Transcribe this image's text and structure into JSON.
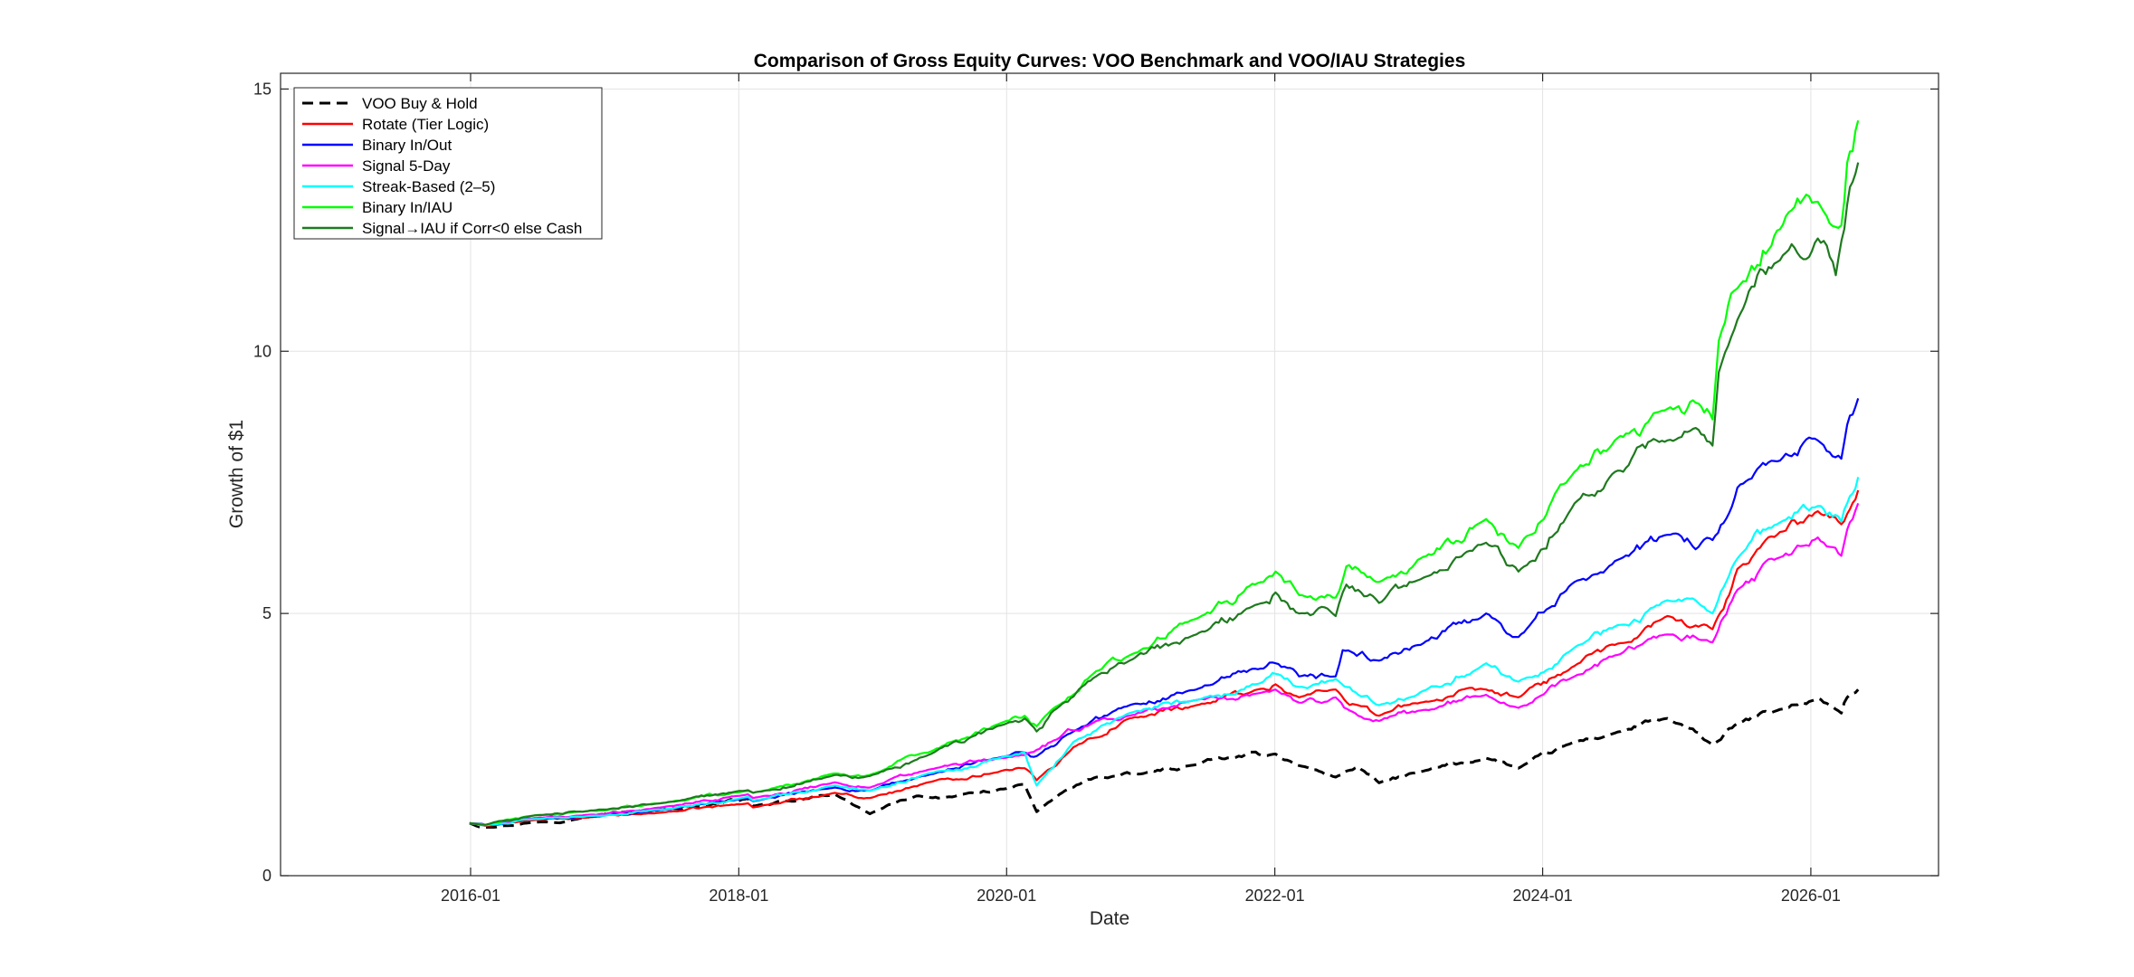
{
  "chart_data": {
    "type": "line",
    "title": "Comparison of Gross Equity Curves: VOO Benchmark and VOO/IAU Strategies",
    "xlabel": "Date",
    "ylabel": "Growth of $1",
    "xlim": [
      "2014-08-01",
      "2026-12-15"
    ],
    "ylim": [
      0,
      15.3
    ],
    "xticks": [
      "2016-01",
      "2018-01",
      "2020-01",
      "2022-01",
      "2024-01",
      "2026-01"
    ],
    "yticks": [
      0,
      5,
      10,
      15
    ],
    "grid": true,
    "legend_position": "top-left",
    "colors": {
      "voo": "#000000",
      "rotate": "#ff0000",
      "binary_inout": "#0000ff",
      "signal5": "#ff00ff",
      "streak": "#00ffff",
      "binary_iau": "#00ff00",
      "signal_iau": "#1e7a1e"
    },
    "series": [
      {
        "name": "VOO Buy & Hold",
        "key": "voo",
        "dashed": true,
        "x": [
          "2015-12-29",
          "2016-02-10",
          "2016-06-24",
          "2016-11-01",
          "2017-03-01",
          "2017-06-01",
          "2017-10-01",
          "2018-01-26",
          "2018-02-09",
          "2018-06-01",
          "2018-09-20",
          "2018-12-24",
          "2019-04-30",
          "2019-08-05",
          "2019-12-31",
          "2020-02-19",
          "2020-03-23",
          "2020-06-08",
          "2020-09-02",
          "2021-01-01",
          "2021-06-01",
          "2021-09-02",
          "2022-01-03",
          "2022-03-08",
          "2022-06-16",
          "2022-08-16",
          "2022-10-12",
          "2023-02-02",
          "2023-07-31",
          "2023-10-27",
          "2024-03-28",
          "2024-07-16",
          "2024-12-06",
          "2025-04-08",
          "2025-06-15",
          "2025-10-01",
          "2026-01-20",
          "2026-03-25",
          "2026-04-10",
          "2026-05-10"
        ],
        "values": [
          1.0,
          0.92,
          1.02,
          1.1,
          1.22,
          1.26,
          1.34,
          1.47,
          1.33,
          1.42,
          1.55,
          1.18,
          1.52,
          1.5,
          1.66,
          1.74,
          1.22,
          1.62,
          1.88,
          1.94,
          2.12,
          2.25,
          2.32,
          2.1,
          1.88,
          2.08,
          1.77,
          1.98,
          2.24,
          2.05,
          2.55,
          2.72,
          3.0,
          2.5,
          2.9,
          3.15,
          3.38,
          3.1,
          3.4,
          3.55
        ]
      },
      {
        "name": "Rotate (Tier Logic)",
        "key": "rotate",
        "x": [
          "2015-12-29",
          "2016-02-10",
          "2016-06-24",
          "2016-11-01",
          "2017-06-01",
          "2018-01-26",
          "2018-02-09",
          "2018-09-20",
          "2018-12-24",
          "2019-06-01",
          "2019-12-31",
          "2020-02-19",
          "2020-03-23",
          "2020-07-01",
          "2020-12-01",
          "2021-06-01",
          "2021-11-15",
          "2022-01-03",
          "2022-03-08",
          "2022-06-16",
          "2022-08-16",
          "2022-10-12",
          "2023-02-02",
          "2023-07-31",
          "2023-10-27",
          "2024-03-28",
          "2024-07-16",
          "2024-12-06",
          "2025-04-08",
          "2025-06-15",
          "2025-10-01",
          "2026-01-20",
          "2026-03-25",
          "2026-04-10",
          "2026-05-10"
        ],
        "values": [
          1.0,
          0.95,
          1.06,
          1.1,
          1.2,
          1.38,
          1.3,
          1.58,
          1.48,
          1.78,
          2.02,
          2.05,
          1.82,
          2.45,
          3.0,
          3.25,
          3.55,
          3.65,
          3.4,
          3.55,
          3.25,
          3.05,
          3.3,
          3.55,
          3.4,
          4.0,
          4.4,
          4.95,
          4.7,
          5.85,
          6.5,
          6.95,
          6.7,
          6.9,
          7.35
        ]
      },
      {
        "name": "Binary In/Out",
        "key": "binary_inout",
        "x": [
          "2015-12-29",
          "2016-02-10",
          "2016-06-24",
          "2016-11-01",
          "2017-06-01",
          "2018-01-26",
          "2018-02-09",
          "2018-09-20",
          "2018-12-24",
          "2019-06-01",
          "2019-12-31",
          "2020-02-19",
          "2020-03-23",
          "2020-07-01",
          "2020-12-01",
          "2021-06-01",
          "2021-12-01",
          "2022-01-03",
          "2022-03-08",
          "2022-06-16",
          "2022-07-05",
          "2022-10-12",
          "2023-02-02",
          "2023-07-31",
          "2023-10-27",
          "2024-03-28",
          "2024-07-16",
          "2024-12-06",
          "2025-04-08",
          "2025-06-15",
          "2025-10-01",
          "2026-01-20",
          "2026-03-25",
          "2026-04-10",
          "2026-05-10"
        ],
        "values": [
          1.0,
          0.97,
          1.08,
          1.12,
          1.25,
          1.48,
          1.42,
          1.68,
          1.62,
          1.92,
          2.28,
          2.35,
          2.28,
          2.75,
          3.25,
          3.55,
          3.95,
          4.05,
          3.8,
          3.8,
          4.3,
          4.1,
          4.4,
          5.0,
          4.55,
          5.6,
          6.0,
          6.5,
          6.4,
          7.4,
          7.9,
          8.3,
          7.95,
          8.6,
          9.1
        ]
      },
      {
        "name": "Signal 5-Day",
        "key": "signal5",
        "x": [
          "2015-12-29",
          "2016-02-10",
          "2016-06-24",
          "2016-11-01",
          "2017-06-01",
          "2018-01-26",
          "2018-02-09",
          "2018-09-20",
          "2018-12-24",
          "2019-06-01",
          "2019-12-31",
          "2020-02-19",
          "2020-03-23",
          "2020-05-01",
          "2020-09-01",
          "2020-12-01",
          "2021-06-01",
          "2021-12-01",
          "2022-01-03",
          "2022-03-08",
          "2022-06-16",
          "2022-08-16",
          "2022-10-12",
          "2023-02-02",
          "2023-07-31",
          "2023-10-27",
          "2024-03-28",
          "2024-07-16",
          "2024-12-06",
          "2025-04-08",
          "2025-06-15",
          "2025-10-01",
          "2026-01-20",
          "2026-03-25",
          "2026-04-10",
          "2026-05-10"
        ],
        "values": [
          1.0,
          0.97,
          1.1,
          1.15,
          1.3,
          1.55,
          1.48,
          1.78,
          1.68,
          2.02,
          2.25,
          2.3,
          2.4,
          2.55,
          2.95,
          3.05,
          3.35,
          3.5,
          3.55,
          3.3,
          3.4,
          3.05,
          2.95,
          3.15,
          3.45,
          3.2,
          3.8,
          4.2,
          4.6,
          4.45,
          5.45,
          6.05,
          6.45,
          6.1,
          6.6,
          7.1
        ]
      },
      {
        "name": "Streak-Based (2–5)",
        "key": "streak",
        "x": [
          "2015-12-29",
          "2016-02-10",
          "2016-06-24",
          "2016-11-01",
          "2017-06-01",
          "2018-01-26",
          "2018-02-09",
          "2018-09-20",
          "2018-12-24",
          "2019-06-01",
          "2019-12-31",
          "2020-02-19",
          "2020-03-23",
          "2020-07-01",
          "2020-12-01",
          "2021-06-01",
          "2021-12-01",
          "2022-01-03",
          "2022-03-08",
          "2022-06-16",
          "2022-08-16",
          "2022-10-12",
          "2023-02-02",
          "2023-07-31",
          "2023-10-27",
          "2024-03-28",
          "2024-07-16",
          "2024-12-06",
          "2025-04-08",
          "2025-06-15",
          "2025-10-01",
          "2026-01-20",
          "2026-03-25",
          "2026-04-10",
          "2026-05-10"
        ],
        "values": [
          1.0,
          0.96,
          1.08,
          1.12,
          1.26,
          1.5,
          1.43,
          1.72,
          1.62,
          1.95,
          2.28,
          2.35,
          1.72,
          2.55,
          3.1,
          3.35,
          3.7,
          3.85,
          3.6,
          3.75,
          3.45,
          3.25,
          3.5,
          4.05,
          3.7,
          4.35,
          4.75,
          5.25,
          5.0,
          6.05,
          6.7,
          7.05,
          6.75,
          7.1,
          7.6
        ]
      },
      {
        "name": "Binary In/IAU",
        "key": "binary_iau",
        "x": [
          "2015-12-29",
          "2016-02-10",
          "2016-06-24",
          "2016-11-01",
          "2017-06-01",
          "2018-01-26",
          "2018-02-09",
          "2018-09-20",
          "2018-12-24",
          "2019-06-01",
          "2019-12-31",
          "2020-02-19",
          "2020-03-23",
          "2020-05-01",
          "2020-09-01",
          "2020-12-01",
          "2021-06-01",
          "2021-12-01",
          "2022-01-03",
          "2022-03-08",
          "2022-06-16",
          "2022-07-15",
          "2022-08-16",
          "2022-10-12",
          "2023-02-02",
          "2023-07-31",
          "2023-10-27",
          "2024-03-28",
          "2024-07-16",
          "2024-12-06",
          "2025-03-01",
          "2025-04-08",
          "2025-04-25",
          "2025-06-15",
          "2025-10-01",
          "2026-01-20",
          "2026-03-25",
          "2026-04-10",
          "2026-05-10"
        ],
        "values": [
          1.0,
          0.97,
          1.15,
          1.22,
          1.38,
          1.62,
          1.58,
          1.95,
          1.92,
          2.35,
          2.95,
          3.05,
          2.85,
          3.15,
          3.9,
          4.2,
          4.9,
          5.6,
          5.8,
          5.35,
          5.3,
          5.9,
          5.85,
          5.6,
          6.05,
          6.8,
          6.25,
          7.7,
          8.3,
          8.9,
          9.0,
          8.7,
          10.2,
          11.2,
          12.3,
          12.85,
          12.4,
          13.6,
          14.4
        ]
      },
      {
        "name": "Signal→IAU if Corr<0 else Cash",
        "key": "signal_iau",
        "x": [
          "2015-12-29",
          "2016-02-10",
          "2016-06-24",
          "2016-11-01",
          "2017-06-01",
          "2018-01-26",
          "2018-02-09",
          "2018-09-20",
          "2018-12-24",
          "2019-06-01",
          "2019-12-31",
          "2020-02-19",
          "2020-03-23",
          "2020-05-01",
          "2020-09-01",
          "2020-12-01",
          "2021-06-01",
          "2021-12-01",
          "2022-01-03",
          "2022-03-08",
          "2022-06-16",
          "2022-07-15",
          "2022-08-16",
          "2022-10-12",
          "2023-02-02",
          "2023-07-31",
          "2023-10-27",
          "2024-03-28",
          "2024-07-16",
          "2024-12-06",
          "2025-03-01",
          "2025-04-08",
          "2025-04-25",
          "2025-06-15",
          "2025-10-01",
          "2026-01-20",
          "2026-03-10",
          "2026-04-10",
          "2026-05-10"
        ],
        "values": [
          1.0,
          0.97,
          1.15,
          1.22,
          1.38,
          1.63,
          1.58,
          1.92,
          1.9,
          2.3,
          2.9,
          3.0,
          2.75,
          3.1,
          3.8,
          4.1,
          4.6,
          5.2,
          5.4,
          5.0,
          4.95,
          5.55,
          5.45,
          5.2,
          5.65,
          6.35,
          5.8,
          7.1,
          7.7,
          8.3,
          8.5,
          8.2,
          9.6,
          10.6,
          11.7,
          12.15,
          11.45,
          12.8,
          13.6
        ]
      }
    ]
  }
}
